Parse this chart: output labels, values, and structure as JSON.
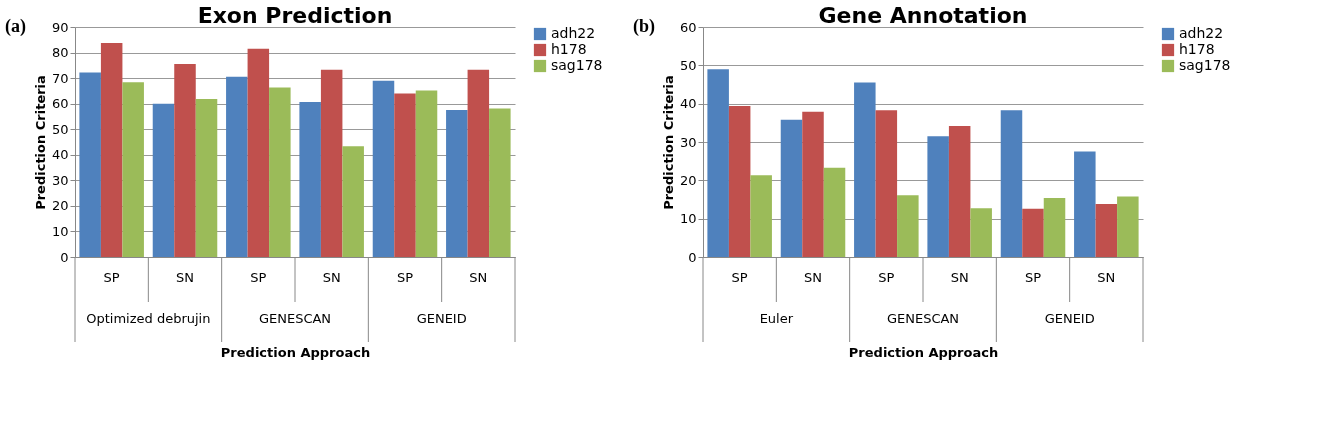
{
  "chart_data": [
    {
      "type": "bar",
      "title": "Exon Prediction",
      "xlabel": "Prediction Approach",
      "ylabel": "Prediction Criteria",
      "categories": [
        "SP",
        "SN",
        "SP",
        "SN",
        "SP",
        "SN"
      ],
      "series": [
        {
          "name": "adh22",
          "color": "#4f81bd",
          "values": [
            72.2,
            60,
            70.5,
            60.7,
            69,
            57.5
          ]
        },
        {
          "name": "h178",
          "color": "#c0504d",
          "values": [
            83.7,
            75.5,
            81.5,
            73.3,
            64,
            73.3
          ]
        },
        {
          "name": "sag178",
          "color": "#9bbb59",
          "values": [
            68.4,
            61.8,
            66.3,
            43.3,
            65.2,
            58.1
          ]
        }
      ],
      "ylim": [
        0,
        90
      ],
      "yticks": [
        0,
        10,
        20,
        30,
        40,
        50,
        60,
        70,
        80,
        90
      ],
      "grid": "y",
      "legend": "right",
      "annotations": [
        "(a)",
        "Optimized debrujin",
        "GENESCAN",
        "GENEID"
      ]
    },
    {
      "type": "bar",
      "title": "Gene Annotation",
      "xlabel": "Prediction Approach",
      "ylabel": "Prediction Criteria",
      "categories": [
        "SP",
        "SN",
        "SP",
        "SN",
        "SP",
        "SN"
      ],
      "series": [
        {
          "name": "adh22",
          "color": "#4f81bd",
          "values": [
            49,
            35.8,
            45.5,
            31.5,
            38.3,
            27.5
          ]
        },
        {
          "name": "h178",
          "color": "#c0504d",
          "values": [
            39.4,
            37.9,
            38.3,
            34.2,
            12.6,
            13.8
          ]
        },
        {
          "name": "sag178",
          "color": "#9bbb59",
          "values": [
            21.3,
            23.3,
            16.1,
            12.7,
            15.4,
            15.8
          ]
        }
      ],
      "ylim": [
        0,
        60
      ],
      "yticks": [
        0,
        10,
        20,
        30,
        40,
        50,
        60
      ],
      "grid": "y",
      "legend": "right",
      "annotations": [
        "(b)",
        "Euler",
        "GENESCAN",
        "GENEID"
      ]
    }
  ]
}
